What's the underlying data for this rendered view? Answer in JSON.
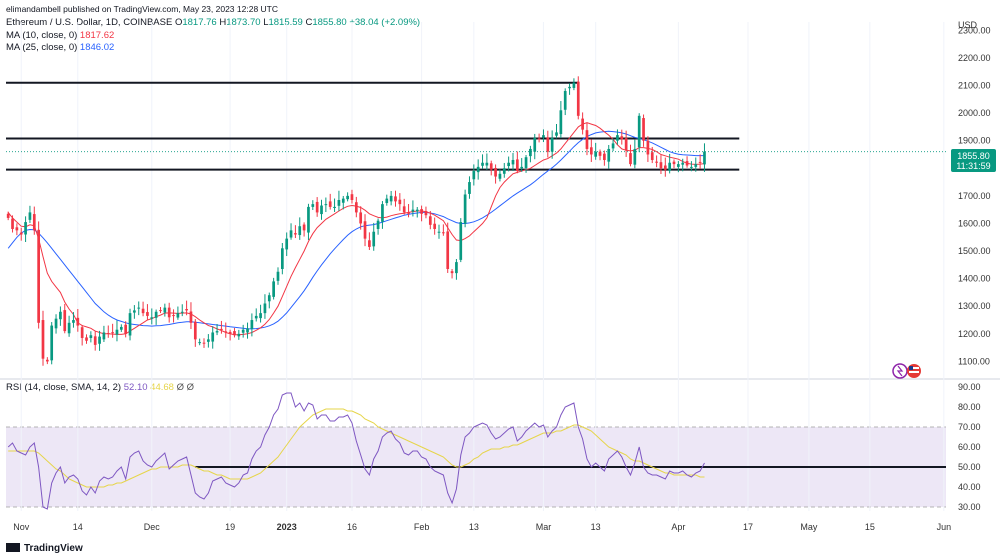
{
  "publisher_line": "elimandambell published on TradingView.com, May 23, 2023 12:28 UTC",
  "header": {
    "symbol": "Ethereum / U.S. Dollar, 1D, COINBASE",
    "o_label": "O",
    "o": "1817.76",
    "h_label": "H",
    "h": "1873.70",
    "l_label": "L",
    "l": "1815.59",
    "c_label": "C",
    "c": "1855.80",
    "change": "+38.04 (+2.09%)",
    "ma10_label": "MA (10, close, 0)",
    "ma10_value": "1817.62",
    "ma25_label": "MA (25, close, 0)",
    "ma25_value": "1846.02",
    "rsi_label": "RSI (14, close, SMA, 14, 2)",
    "rsi_value": "52.10",
    "rsi_ma_value": "44.68",
    "rsi_extra1": "Ø",
    "rsi_extra2": "Ø"
  },
  "price_badge": {
    "price": "1855.80",
    "countdown": "11:31:59"
  },
  "currency": "USD",
  "footer_logo": "TradingView",
  "colors": {
    "up": "#089981",
    "down": "#f23645",
    "ma10": "#f23645",
    "ma25": "#2962ff",
    "rsi": "#7e57c2",
    "rsi_ma": "#e6d54a",
    "rsi_band": "#ede7f6"
  },
  "chart_data": {
    "type": "candlestick",
    "price_axis": {
      "ticks": [
        1100,
        1200,
        1300,
        1400,
        1500,
        1600,
        1700,
        1800,
        1900,
        2000,
        2100,
        2200,
        2300
      ],
      "tick_labels": [
        "1100.00",
        "1200.00",
        "1300.00",
        "1400.00",
        "1500.00",
        "1600.00",
        "1700.00",
        "1800.00",
        "1900.00",
        "2000.00",
        "2100.00",
        "2200.00",
        "2300.00"
      ],
      "range": [
        1040,
        2330
      ]
    },
    "rsi_axis": {
      "ticks": [
        30,
        40,
        50,
        60,
        70,
        80,
        90
      ],
      "tick_labels": [
        "30.00",
        "40.00",
        "50.00",
        "60.00",
        "70.00",
        "80.00",
        "90.00"
      ],
      "range": [
        28,
        92
      ],
      "band": [
        30,
        70
      ]
    },
    "x_axis": {
      "tick_labels": [
        "Nov",
        "14",
        "Dec",
        "19",
        "2023",
        "16",
        "Feb",
        "13",
        "Mar",
        "13",
        "Apr",
        "17",
        "May",
        "15",
        "Jun"
      ],
      "tick_dates": [
        "2022-11-01",
        "2022-11-14",
        "2022-12-01",
        "2022-12-19",
        "2023-01-01",
        "2023-01-16",
        "2023-02-01",
        "2023-02-13",
        "2023-03-01",
        "2023-03-13",
        "2023-04-01",
        "2023-04-17",
        "2023-05-01",
        "2023-05-15",
        "2023-06-01"
      ]
    },
    "start_date": "2022-10-29",
    "horizontal_lines": [
      2110,
      1908,
      1795
    ],
    "rsi_horizontal_line": 50,
    "candles_close": [
      1620,
      1580,
      1575,
      1560,
      1605,
      1640,
      1575,
      1240,
      1110,
      1100,
      1230,
      1255,
      1280,
      1210,
      1240,
      1250,
      1230,
      1185,
      1175,
      1195,
      1160,
      1190,
      1205,
      1200,
      1205,
      1215,
      1225,
      1200,
      1275,
      1285,
      1295,
      1275,
      1265,
      1260,
      1280,
      1285,
      1295,
      1260,
      1265,
      1275,
      1280,
      1285,
      1240,
      1180,
      1170,
      1165,
      1180,
      1205,
      1210,
      1215,
      1205,
      1200,
      1195,
      1200,
      1215,
      1220,
      1250,
      1265,
      1275,
      1310,
      1340,
      1390,
      1425,
      1510,
      1545,
      1575,
      1560,
      1590,
      1575,
      1660,
      1670,
      1640,
      1665,
      1670,
      1660,
      1660,
      1685,
      1690,
      1700,
      1685,
      1640,
      1600,
      1545,
      1515,
      1570,
      1610,
      1670,
      1690,
      1700,
      1680,
      1670,
      1640,
      1635,
      1650,
      1650,
      1635,
      1630,
      1595,
      1580,
      1570,
      1565,
      1435,
      1420,
      1460,
      1605,
      1705,
      1750,
      1790,
      1805,
      1820,
      1820,
      1795,
      1770,
      1780,
      1800,
      1820,
      1830,
      1790,
      1805,
      1840,
      1870,
      1910,
      1905,
      1920,
      1860,
      1910,
      1930,
      2010,
      2080,
      2095,
      2110,
      1990,
      1940,
      1870,
      1850,
      1860,
      1845,
      1830,
      1870,
      1890,
      1920,
      1905,
      1865,
      1815,
      1870,
      1990,
      1900,
      1850,
      1830,
      1820,
      1800,
      1795,
      1820,
      1815,
      1815,
      1820,
      1810,
      1805,
      1815,
      1820,
      1860
    ],
    "rsi_values": [
      60,
      62,
      58,
      57,
      56,
      60,
      62,
      50,
      30,
      29,
      42,
      47,
      50,
      42,
      45,
      46,
      44,
      38,
      36,
      40,
      37,
      43,
      45,
      44,
      45,
      48,
      50,
      44,
      55,
      57,
      58,
      53,
      51,
      50,
      53,
      55,
      57,
      49,
      51,
      53,
      54,
      55,
      46,
      37,
      35,
      34,
      37,
      43,
      44,
      45,
      42,
      41,
      40,
      42,
      46,
      47,
      54,
      58,
      60,
      66,
      70,
      76,
      79,
      86,
      87,
      87,
      80,
      82,
      78,
      82,
      81,
      74,
      76,
      76,
      73,
      73,
      75,
      75,
      76,
      72,
      63,
      56,
      49,
      46,
      54,
      58,
      65,
      67,
      68,
      64,
      62,
      57,
      56,
      58,
      58,
      55,
      54,
      50,
      48,
      47,
      46,
      37,
      32,
      39,
      56,
      65,
      67,
      70,
      71,
      72,
      71,
      67,
      64,
      65,
      67,
      69,
      70,
      63,
      65,
      68,
      70,
      72,
      70,
      71,
      65,
      68,
      70,
      76,
      80,
      81,
      82,
      70,
      64,
      54,
      50,
      52,
      50,
      48,
      54,
      56,
      58,
      55,
      50,
      46,
      52,
      60,
      50,
      47,
      46,
      46,
      45,
      44,
      48,
      47,
      47,
      48,
      46,
      45,
      47,
      48,
      52
    ],
    "ma10_values": [
      1640,
      1620,
      1605,
      1590,
      1588,
      1595,
      1592,
      1545,
      1480,
      1420,
      1390,
      1370,
      1350,
      1315,
      1290,
      1270,
      1240,
      1230,
      1225,
      1220,
      1210,
      1205,
      1200,
      1200,
      1199,
      1198,
      1198,
      1200,
      1210,
      1220,
      1230,
      1240,
      1250,
      1255,
      1262,
      1268,
      1275,
      1276,
      1275,
      1274,
      1275,
      1276,
      1272,
      1262,
      1250,
      1240,
      1230,
      1225,
      1218,
      1212,
      1205,
      1200,
      1197,
      1197,
      1198,
      1200,
      1205,
      1213,
      1222,
      1235,
      1252,
      1275,
      1300,
      1335,
      1372,
      1408,
      1440,
      1470,
      1500,
      1535,
      1563,
      1585,
      1600,
      1615,
      1625,
      1635,
      1645,
      1655,
      1662,
      1665,
      1663,
      1658,
      1648,
      1635,
      1628,
      1622,
      1620,
      1623,
      1628,
      1632,
      1635,
      1637,
      1640,
      1643,
      1645,
      1645,
      1643,
      1637,
      1630,
      1620,
      1610,
      1585,
      1560,
      1540,
      1538,
      1545,
      1555,
      1570,
      1585,
      1600,
      1620,
      1660,
      1700,
      1730,
      1750,
      1765,
      1780,
      1785,
      1790,
      1795,
      1800,
      1810,
      1820,
      1830,
      1835,
      1845,
      1855,
      1870,
      1890,
      1910,
      1930,
      1950,
      1960,
      1965,
      1960,
      1955,
      1945,
      1932,
      1920,
      1905,
      1885,
      1870,
      1865,
      1863,
      1865,
      1875,
      1875,
      1872,
      1868,
      1860,
      1850,
      1845,
      1840,
      1837,
      1833,
      1825,
      1818,
      1815,
      1814,
      1815,
      1817
    ],
    "ma25_values": [
      1510,
      1530,
      1550,
      1565,
      1575,
      1578,
      1577,
      1565,
      1548,
      1530,
      1510,
      1490,
      1470,
      1450,
      1430,
      1410,
      1390,
      1370,
      1350,
      1330,
      1310,
      1295,
      1280,
      1268,
      1258,
      1250,
      1245,
      1240,
      1236,
      1234,
      1232,
      1230,
      1229,
      1228,
      1229,
      1230,
      1232,
      1234,
      1237,
      1240,
      1242,
      1244,
      1244,
      1242,
      1240,
      1238,
      1236,
      1234,
      1232,
      1230,
      1228,
      1226,
      1224,
      1222,
      1220,
      1218,
      1218,
      1219,
      1221,
      1224,
      1229,
      1236,
      1246,
      1260,
      1276,
      1295,
      1315,
      1335,
      1356,
      1380,
      1405,
      1428,
      1450,
      1470,
      1490,
      1508,
      1525,
      1542,
      1557,
      1570,
      1580,
      1588,
      1592,
      1594,
      1596,
      1600,
      1605,
      1610,
      1615,
      1620,
      1625,
      1630,
      1633,
      1636,
      1638,
      1640,
      1640,
      1638,
      1635,
      1630,
      1625,
      1617,
      1610,
      1603,
      1600,
      1600,
      1602,
      1606,
      1612,
      1620,
      1630,
      1640,
      1652,
      1664,
      1676,
      1688,
      1700,
      1710,
      1720,
      1730,
      1740,
      1752,
      1765,
      1778,
      1790,
      1802,
      1815,
      1830,
      1846,
      1862,
      1878,
      1893,
      1905,
      1915,
      1922,
      1928,
      1931,
      1933,
      1934,
      1933,
      1931,
      1928,
      1924,
      1918,
      1912,
      1908,
      1904,
      1898,
      1892,
      1884,
      1876,
      1868,
      1860,
      1855,
      1851,
      1849,
      1848,
      1847,
      1846,
      1846,
      1846
    ],
    "rsi_ma_values": [
      58,
      58,
      58,
      58,
      58,
      58,
      58,
      57,
      55,
      53,
      51,
      49,
      48,
      46,
      44,
      43,
      42,
      41,
      40,
      40,
      40,
      40,
      40,
      41,
      41,
      42,
      42,
      43,
      44,
      45,
      46,
      47,
      48,
      49,
      49,
      50,
      50,
      50,
      50,
      50,
      51,
      51,
      51,
      50,
      49,
      48,
      48,
      47,
      46,
      46,
      45,
      44,
      44,
      44,
      44,
      44,
      45,
      46,
      47,
      49,
      51,
      53,
      55,
      58,
      61,
      64,
      67,
      70,
      72,
      74,
      76,
      77,
      78,
      79,
      79,
      79,
      79,
      79,
      78,
      78,
      77,
      76,
      74,
      73,
      72,
      70,
      69,
      68,
      67,
      66,
      65,
      64,
      63,
      62,
      61,
      60,
      59,
      58,
      57,
      56,
      55,
      53,
      51,
      50,
      50,
      51,
      52,
      54,
      55,
      57,
      58,
      59,
      59,
      59,
      60,
      60,
      61,
      61,
      62,
      63,
      64,
      65,
      66,
      67,
      67,
      67,
      68,
      68,
      69,
      70,
      71,
      71,
      70,
      69,
      68,
      66,
      64,
      62,
      60,
      59,
      58,
      57,
      56,
      54,
      53,
      53,
      52,
      51,
      50,
      49,
      48,
      47,
      47,
      46,
      46,
      46,
      46,
      46,
      46,
      45,
      45
    ]
  }
}
